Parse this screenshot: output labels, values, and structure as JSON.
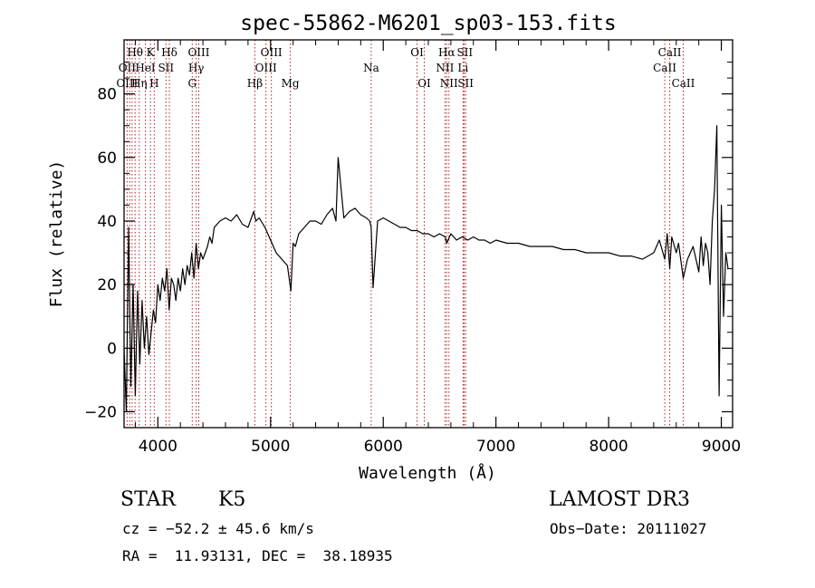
{
  "chart_data": {
    "type": "line",
    "title": "spec-55862-M6201_sp03-153.fits",
    "xlabel": "Wavelength (Å)",
    "ylabel": "Flux (relative)",
    "xlim": [
      3700,
      9100
    ],
    "ylim": [
      -25,
      97
    ],
    "xticks": [
      4000,
      5000,
      6000,
      7000,
      8000,
      9000
    ],
    "yticks": [
      -20,
      0,
      20,
      40,
      60,
      80
    ],
    "grid": false,
    "series": [
      {
        "name": "flux",
        "x": [
          3700,
          3720,
          3740,
          3760,
          3780,
          3800,
          3820,
          3840,
          3860,
          3880,
          3900,
          3920,
          3940,
          3960,
          3980,
          4000,
          4020,
          4040,
          4060,
          4080,
          4100,
          4120,
          4140,
          4160,
          4180,
          4200,
          4220,
          4240,
          4260,
          4280,
          4300,
          4320,
          4340,
          4360,
          4380,
          4400,
          4420,
          4440,
          4460,
          4480,
          4500,
          4550,
          4600,
          4650,
          4700,
          4750,
          4800,
          4850,
          4870,
          4900,
          4950,
          5000,
          5050,
          5100,
          5150,
          5180,
          5200,
          5220,
          5250,
          5300,
          5350,
          5400,
          5450,
          5500,
          5550,
          5580,
          5600,
          5650,
          5700,
          5750,
          5800,
          5850,
          5880,
          5893,
          5910,
          5950,
          6000,
          6050,
          6100,
          6150,
          6200,
          6250,
          6300,
          6350,
          6400,
          6450,
          6500,
          6550,
          6563,
          6600,
          6650,
          6700,
          6750,
          6800,
          6850,
          6900,
          6950,
          7000,
          7100,
          7200,
          7300,
          7400,
          7500,
          7600,
          7700,
          7800,
          7900,
          8000,
          8100,
          8200,
          8300,
          8400,
          8450,
          8498,
          8520,
          8542,
          8560,
          8600,
          8620,
          8662,
          8700,
          8750,
          8800,
          8820,
          8840,
          8860,
          8880,
          8900,
          8920,
          8940,
          8960,
          8980,
          9000,
          9020,
          9040,
          9060
        ],
        "y": [
          0,
          -20,
          38,
          -12,
          20,
          -15,
          18,
          -5,
          15,
          0,
          10,
          -2,
          5,
          12,
          8,
          20,
          15,
          22,
          18,
          25,
          12,
          22,
          20,
          15,
          22,
          18,
          25,
          20,
          26,
          23,
          30,
          22,
          33,
          25,
          30,
          28,
          30,
          32,
          35,
          33,
          38,
          40,
          41,
          40,
          42,
          39,
          38,
          43,
          40,
          41,
          38,
          34,
          30,
          28,
          26,
          18,
          33,
          32,
          36,
          38,
          40,
          40,
          39,
          42,
          44,
          40,
          60,
          41,
          43,
          44,
          42,
          41,
          40,
          38,
          19,
          40,
          41,
          40,
          39,
          38,
          38,
          37,
          37,
          36,
          36,
          35,
          36,
          35,
          33,
          36,
          34,
          35,
          34,
          35,
          34,
          34,
          33,
          34,
          33,
          33,
          32,
          32,
          32,
          31,
          31,
          30,
          30,
          30,
          29,
          29,
          28,
          30,
          34,
          28,
          36,
          25,
          35,
          30,
          33,
          22,
          28,
          32,
          24,
          35,
          26,
          33,
          30,
          20,
          40,
          50,
          70,
          -15,
          45,
          10,
          30,
          25
        ]
      }
    ],
    "line_labels": [
      {
        "name": "Hθ",
        "wl": 3798,
        "row": 1
      },
      {
        "name": "OII",
        "wl": 3727,
        "row": 2
      },
      {
        "name": "OIII",
        "wl": 3727,
        "row": 3
      },
      {
        "name": "K",
        "wl": 3934,
        "row": 1
      },
      {
        "name": "HeI",
        "wl": 3889,
        "row": 2
      },
      {
        "name": "Hη",
        "wl": 3835,
        "row": 3
      },
      {
        "name": "SII",
        "wl": 4072,
        "row": 2
      },
      {
        "name": "H",
        "wl": 3968,
        "row": 3
      },
      {
        "name": "Hδ",
        "wl": 4102,
        "row": 1
      },
      {
        "name": "OIII",
        "wl": 4363,
        "row": 1
      },
      {
        "name": "Hγ",
        "wl": 4340,
        "row": 2
      },
      {
        "name": "G",
        "wl": 4305,
        "row": 3
      },
      {
        "name": "OIII",
        "wl": 5007,
        "row": 1
      },
      {
        "name": "OIII",
        "wl": 4959,
        "row": 2
      },
      {
        "name": "Hβ",
        "wl": 4861,
        "row": 3
      },
      {
        "name": "Mg",
        "wl": 5175,
        "row": 3
      },
      {
        "name": "Na",
        "wl": 5893,
        "row": 2
      },
      {
        "name": "OI",
        "wl": 6300,
        "row": 1
      },
      {
        "name": "OI",
        "wl": 6364,
        "row": 3
      },
      {
        "name": "Hα",
        "wl": 6563,
        "row": 1
      },
      {
        "name": "SII",
        "wl": 6724,
        "row": 1
      },
      {
        "name": "NII",
        "wl": 6548,
        "row": 2
      },
      {
        "name": "Li",
        "wl": 6708,
        "row": 2
      },
      {
        "name": "NII",
        "wl": 6583,
        "row": 3
      },
      {
        "name": "SII",
        "wl": 6731,
        "row": 3
      },
      {
        "name": "CaII",
        "wl": 8542,
        "row": 1
      },
      {
        "name": "CaII",
        "wl": 8498,
        "row": 2
      },
      {
        "name": "CaII",
        "wl": 8662,
        "row": 3
      }
    ],
    "line_markers": [
      3727,
      3750,
      3771,
      3798,
      3835,
      3889,
      3934,
      3968,
      4072,
      4102,
      4305,
      4340,
      4363,
      4861,
      4959,
      5007,
      5175,
      5893,
      6300,
      6364,
      6548,
      6563,
      6583,
      6708,
      6717,
      6731,
      8498,
      8542,
      8662
    ]
  },
  "info": {
    "object_class": "STAR",
    "subclass": "K5",
    "survey": "LAMOST DR3",
    "cz": "cz = −52.2 ± 45.6 km/s",
    "obs_date": "Obs−Date: 20111027",
    "coords": "RA =  11.93131, DEC =  38.18935"
  },
  "colors": {
    "marker": "#b22222",
    "line": "#000000",
    "axis": "#000000"
  }
}
